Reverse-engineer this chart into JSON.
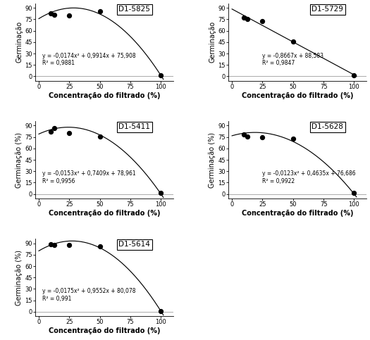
{
  "panels": [
    {
      "label": "D1-5825",
      "eq_line1": "y = -0,0174x² + 0,9914x + 75,908",
      "eq_line2": "R² = 0,9881",
      "x_data": [
        10,
        12.5,
        25,
        50,
        100
      ],
      "y_data": [
        83,
        81,
        80,
        86,
        1
      ],
      "a": -0.0174,
      "b": 0.9914,
      "c": 75.908,
      "linear": false,
      "ylabel": "Germinação",
      "eq_x": 3,
      "eq_y": 22
    },
    {
      "label": "D1-5729",
      "eq_line1": "y = -0,8667x + 88,583",
      "eq_line2": "R² = 0,9847",
      "x_data": [
        10,
        12.5,
        25,
        50,
        100
      ],
      "y_data": [
        77,
        75,
        73,
        46,
        1
      ],
      "a": 0,
      "b": -0.8667,
      "c": 88.583,
      "linear": true,
      "ylabel": "Germinação",
      "eq_x": 25,
      "eq_y": 22
    },
    {
      "label": "D1-5411",
      "eq_line1": "y = -0,0153x² + 0,7409x + 78,961",
      "eq_line2": "R² = 0,9956",
      "x_data": [
        10,
        12.5,
        25,
        50,
        100
      ],
      "y_data": [
        82,
        87,
        80,
        76,
        1
      ],
      "a": -0.0153,
      "b": 0.7409,
      "c": 78.961,
      "linear": false,
      "ylabel": "Germinação (%)",
      "eq_x": 3,
      "eq_y": 22
    },
    {
      "label": "D1-5628",
      "eq_line1": "y = -0,0123x² + 0,4635x + 76,686",
      "eq_line2": "R² = 0,9922",
      "x_data": [
        10,
        12.5,
        25,
        50,
        100
      ],
      "y_data": [
        78,
        76,
        75,
        73,
        1
      ],
      "a": -0.0123,
      "b": 0.4635,
      "c": 76.686,
      "linear": false,
      "ylabel": "Germinação (%)",
      "eq_x": 25,
      "eq_y": 22
    },
    {
      "label": "D1-5614",
      "eq_line1": "y = -0,0175x² + 0,9552x + 80,078",
      "eq_line2": "R² = 0,991",
      "x_data": [
        10,
        12.5,
        25,
        50,
        100
      ],
      "y_data": [
        89,
        88,
        88,
        86,
        1
      ],
      "a": -0.0175,
      "b": 0.9552,
      "c": 80.078,
      "linear": false,
      "ylabel": "Germinação (%)",
      "eq_x": 3,
      "eq_y": 22
    }
  ],
  "xlabel": "Concentração do filtrado (%)",
  "xticks": [
    0,
    25,
    50,
    75,
    100
  ],
  "yticks": [
    0,
    15,
    30,
    45,
    60,
    75,
    90
  ],
  "ylim": [
    -6,
    96
  ],
  "xlim": [
    -3,
    110
  ],
  "bg_color": "#ffffff",
  "text_color": "#000000",
  "curve_color": "#000000",
  "dot_color": "#000000",
  "dot_size": 18,
  "fontsize_ylabel": 7,
  "fontsize_xlabel": 7,
  "fontsize_tick": 6,
  "fontsize_eq": 5.5,
  "fontsize_tag": 7.5
}
